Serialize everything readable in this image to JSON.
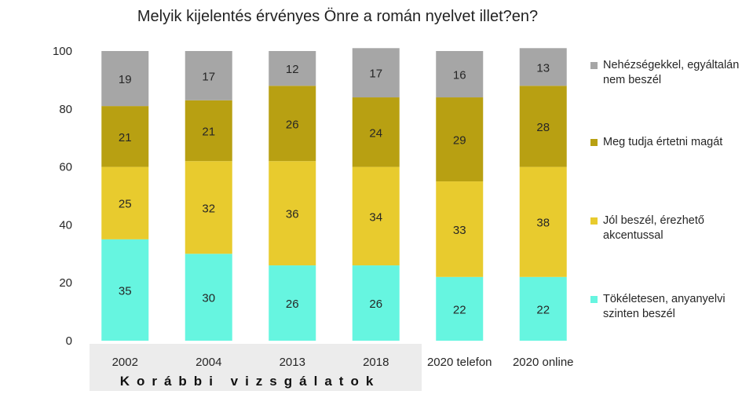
{
  "chart_data": {
    "type": "bar",
    "stacked": true,
    "title": "Melyik kijelentés érvényes Önre a román nyelvet illet?en?",
    "categories": [
      "2002",
      "2004",
      "2013",
      "2018",
      "2020 telefon",
      "2020 online"
    ],
    "category_group": {
      "label": "Korábbi vizsgálatok",
      "categories": [
        "2002",
        "2004",
        "2013",
        "2018"
      ]
    },
    "ylim": [
      0,
      100
    ],
    "yticks": [
      0,
      20,
      40,
      60,
      80,
      100
    ],
    "grid": false,
    "legend_position": "right",
    "series": [
      {
        "name": "Tökéletesen, anyanyelvi szinten beszél",
        "color": "#66F5E0",
        "values": [
          35,
          30,
          26,
          26,
          22,
          22
        ]
      },
      {
        "name": "Jól beszél, érezhető akcentussal",
        "color": "#E8CB2E",
        "values": [
          25,
          32,
          36,
          34,
          33,
          38
        ]
      },
      {
        "name": "Meg tudja értetni magát",
        "color": "#B8A012",
        "values": [
          21,
          21,
          26,
          24,
          29,
          28
        ]
      },
      {
        "name": "Nehézségekkel, egyáltalán nem beszél",
        "color": "#A6A6A6",
        "values": [
          19,
          17,
          12,
          17,
          16,
          13
        ]
      }
    ]
  }
}
